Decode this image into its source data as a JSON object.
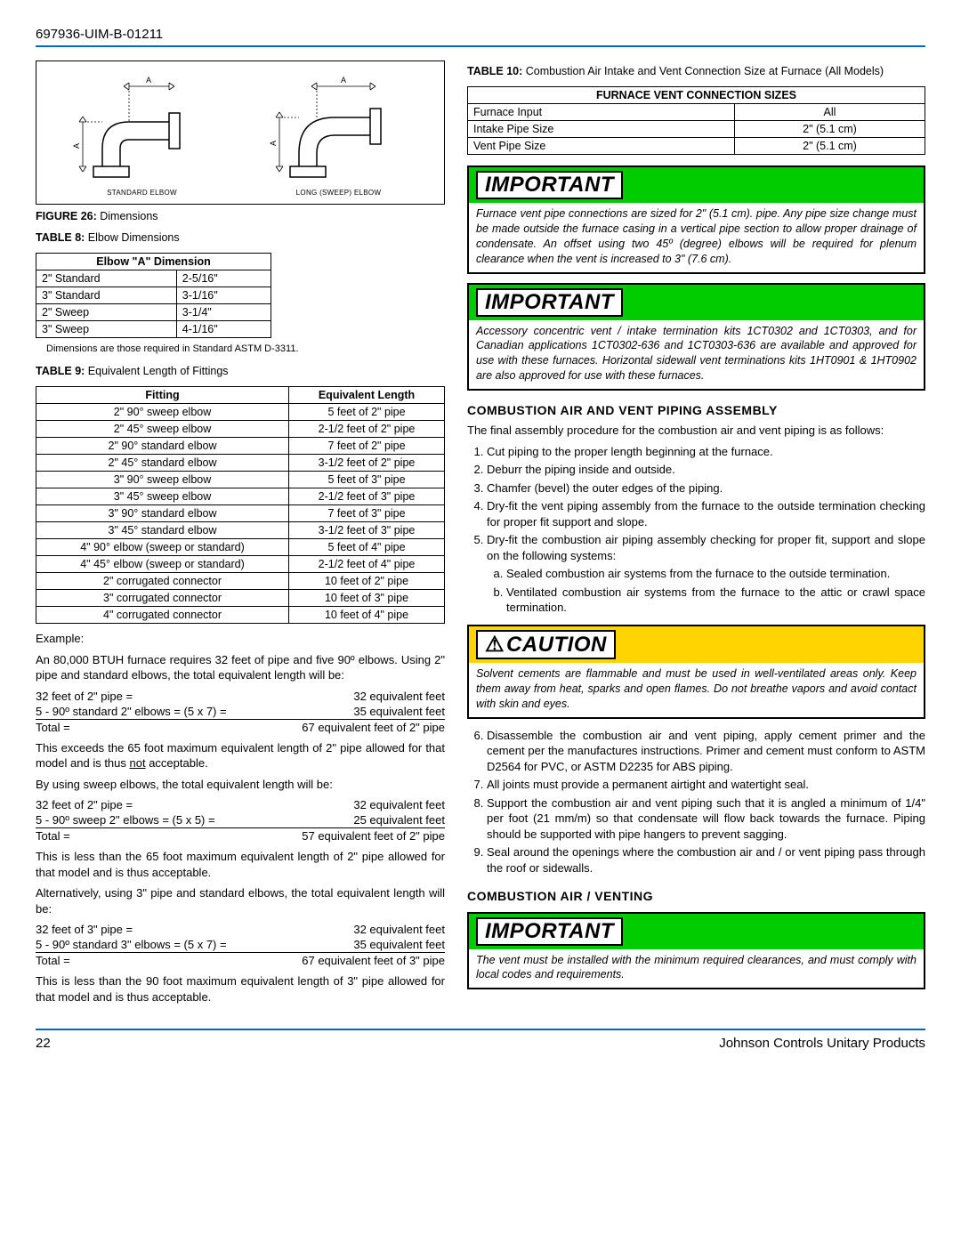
{
  "header": {
    "docnum": "697936-UIM-B-01211"
  },
  "footer": {
    "page": "22",
    "company": "Johnson Controls Unitary Products"
  },
  "figure26": {
    "caption_prefix": "FIGURE 26:",
    "caption_text": "  Dimensions",
    "standard_label": "STANDARD ELBOW",
    "long_label": "LONG (SWEEP) ELBOW",
    "dim_letter": "A"
  },
  "table8": {
    "caption_prefix": "TABLE 8:",
    "caption_text": " Elbow Dimensions",
    "header": "Elbow \"A\" Dimension",
    "rows": [
      [
        "2\" Standard",
        "2-5/16\""
      ],
      [
        "3\" Standard",
        "3-1/16\""
      ],
      [
        "2\" Sweep",
        "3-1/4\""
      ],
      [
        "3\" Sweep",
        "4-1/16\""
      ]
    ],
    "note": "Dimensions are those required in Standard ASTM D-3311."
  },
  "table9": {
    "caption_prefix": "TABLE 9:",
    "caption_text": " Equivalent Length of Fittings",
    "headers": [
      "Fitting",
      "Equivalent Length"
    ],
    "rows": [
      [
        "2\" 90° sweep elbow",
        "5 feet of 2\" pipe"
      ],
      [
        "2\" 45° sweep elbow",
        "2-1/2 feet of 2\" pipe"
      ],
      [
        "2\" 90° standard elbow",
        "7 feet of 2\" pipe"
      ],
      [
        "2\" 45° standard elbow",
        "3-1/2 feet of 2\" pipe"
      ],
      [
        "3\" 90° sweep elbow",
        "5 feet of 3\" pipe"
      ],
      [
        "3\" 45° sweep elbow",
        "2-1/2 feet of 3\" pipe"
      ],
      [
        "3\" 90° standard elbow",
        "7 feet of 3\" pipe"
      ],
      [
        "3\" 45° standard elbow",
        "3-1/2 feet of 3\" pipe"
      ],
      [
        "4\" 90° elbow (sweep or standard)",
        "5 feet of 4\" pipe"
      ],
      [
        "4\" 45° elbow (sweep or standard)",
        "2-1/2 feet of 4\" pipe"
      ],
      [
        "2\" corrugated connector",
        "10 feet of 2\" pipe"
      ],
      [
        "3\" corrugated connector",
        "10 feet of 3\" pipe"
      ],
      [
        "4\" corrugated connector",
        "10 feet of 4\" pipe"
      ]
    ]
  },
  "example": {
    "label": "Example:",
    "intro": "An 80,000 BTUH furnace requires 32 feet of pipe and five 90º elbows. Using 2\" pipe and standard elbows, the total equivalent length will be:",
    "calc1": {
      "r1": [
        "32 feet of 2\" pipe =",
        "32 equivalent feet"
      ],
      "r2": [
        "5 - 90º standard 2\" elbows = (5 x 7) =",
        "35 equivalent feet"
      ],
      "r3": [
        "Total =",
        "67 equivalent feet of 2\" pipe"
      ]
    },
    "p1a": "This exceeds the 65 foot maximum equivalent length of 2\" pipe allowed for that model and is thus ",
    "p1b": "not",
    "p1c": " acceptable.",
    "p2": "By using sweep elbows, the total equivalent length will be:",
    "calc2": {
      "r1": [
        "32 feet of 2\" pipe =",
        "32 equivalent feet"
      ],
      "r2": [
        "5 - 90º sweep 2\" elbows = (5 x 5) =",
        "25 equivalent feet"
      ],
      "r3": [
        "Total =",
        "57 equivalent feet of 2\" pipe"
      ]
    },
    "p3": "This is less than the 65 foot maximum equivalent length of 2\" pipe allowed for that model and is thus acceptable.",
    "p4": "Alternatively, using 3\" pipe and standard elbows, the total equivalent length will be:",
    "calc3": {
      "r1": [
        "32 feet of 3\" pipe =",
        "32 equivalent feet"
      ],
      "r2": [
        "5 - 90º standard 3\" elbows = (5 x 7) =",
        "35 equivalent feet"
      ],
      "r3": [
        "Total =",
        "67 equivalent feet of 3\" pipe"
      ]
    },
    "p5": "This is less than the 90 foot maximum equivalent length of 3\" pipe allowed for that model and is thus acceptable."
  },
  "table10": {
    "caption_prefix": "TABLE 10:",
    "caption_text": " Combustion Air Intake and Vent Connection Size at Furnace (All Models)",
    "header": "FURNACE VENT CONNECTION SIZES",
    "rows": [
      [
        "Furnace Input",
        "All"
      ],
      [
        "Intake Pipe Size",
        "2\" (5.1 cm)"
      ],
      [
        "Vent Pipe Size",
        "2\" (5.1 cm)"
      ]
    ]
  },
  "notice1": {
    "label": "IMPORTANT",
    "body": "Furnace vent pipe connections are sized for 2\" (5.1 cm). pipe. Any pipe size change must be made outside the furnace casing in a vertical pipe section to allow proper drainage of condensate. An offset using two 45º (degree) elbows will be required for plenum clearance when the vent is increased to 3\" (7.6 cm)."
  },
  "notice2": {
    "label": "IMPORTANT",
    "body": "Accessory concentric vent / intake termination kits 1CT0302 and 1CT0303, and for Canadian applications 1CT0302-636 and 1CT0303-636 are available and approved for use with these furnaces. Horizontal sidewall vent terminations kits 1HT0901 & 1HT0902 are also approved for use with these furnaces."
  },
  "section1": {
    "title": "COMBUSTION AIR AND VENT PIPING ASSEMBLY",
    "intro": "The final assembly procedure for the combustion air and vent piping is as follows:",
    "steps": [
      "Cut piping to the proper length beginning at the furnace.",
      "Deburr the piping inside and outside.",
      "Chamfer (bevel) the outer edges of the piping.",
      "Dry-fit the vent piping assembly from the furnace to the outside termination checking for proper fit support and slope.",
      "Dry-fit the combustion air piping assembly checking for proper fit, support and slope on the following systems:"
    ],
    "sub": [
      "Sealed combustion air systems from the furnace to the outside termination.",
      "Ventilated combustion air systems from the furnace to the attic or crawl space termination."
    ]
  },
  "caution": {
    "label": "CAUTION",
    "body": "Solvent cements are flammable and must be used in well-ventilated areas only. Keep them away from heat, sparks and open flames. Do not breathe vapors and avoid contact with skin and eyes."
  },
  "steps_cont": [
    "Disassemble the combustion air and vent piping, apply cement primer and the cement per the manufactures instructions. Primer and cement must conform to ASTM D2564 for PVC, or ASTM D2235 for ABS piping.",
    "All joints must provide a permanent airtight and watertight seal.",
    "Support the combustion air and vent piping such that it is angled a minimum of 1/4\" per foot (21 mm/m) so that condensate will flow back towards the furnace. Piping should be supported with pipe hangers to prevent sagging.",
    "Seal around the openings where the combustion air and / or vent piping pass through the roof or sidewalls."
  ],
  "section2": {
    "title": "COMBUSTION AIR / VENTING"
  },
  "notice3": {
    "label": "IMPORTANT",
    "body": "The vent must be installed with the minimum required clearances, and must comply with local codes and requirements."
  }
}
